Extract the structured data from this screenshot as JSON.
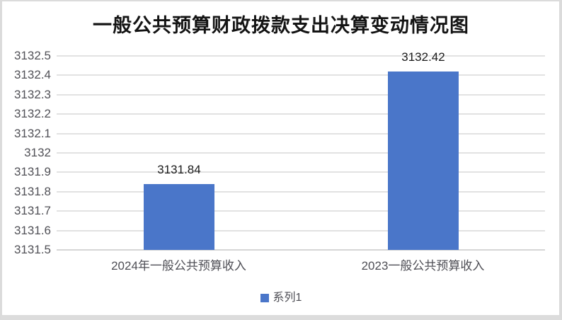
{
  "chart_data": {
    "type": "bar",
    "title": "一般公共预算财政拨款支出决算变动情况图",
    "categories": [
      "2024年一般公共预算收入",
      "2023一般公共预算收入"
    ],
    "series": [
      {
        "name": "系列1",
        "color": "#4A76C9",
        "values": [
          3131.84,
          3132.42
        ]
      }
    ],
    "data_labels": [
      "3131.84",
      "3132.42"
    ],
    "xlabel": "",
    "ylabel": "",
    "ylim": [
      3131.5,
      3132.5
    ],
    "ytick_step": 0.1,
    "yticks_top_to_bottom": [
      "3132.5",
      "3132.4",
      "3132.3",
      "3132.2",
      "3132.1",
      "3132",
      "3131.9",
      "3131.8",
      "3131.7",
      "3131.6",
      "3131.5"
    ],
    "grid": true,
    "legend_position": "bottom"
  },
  "colors": {
    "bar": "#4A76C9",
    "gridline": "#E2E2E2",
    "baseline": "#D6D6D6",
    "axis_text": "#515157",
    "title_text": "#141414",
    "frame": "#DBDBDB",
    "background": "#FFFFFF"
  }
}
